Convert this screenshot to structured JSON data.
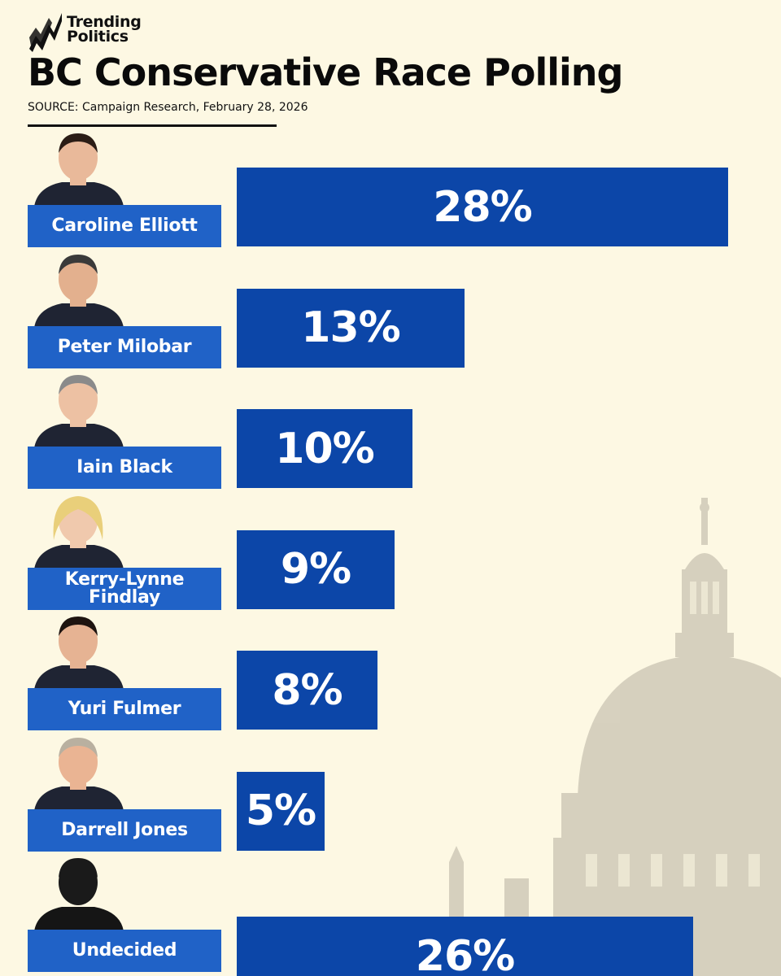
{
  "brand": {
    "line1": "Trending",
    "line2": "Politics"
  },
  "title": "BC Conservative Race Polling",
  "source": "SOURCE: Campaign Research, February 28, 2026",
  "colors": {
    "bar": "#0c46a8",
    "label": "#2062c7",
    "background": "#fdf8e3"
  },
  "chart_data": {
    "type": "bar",
    "orientation": "horizontal",
    "title": "BC Conservative Race Polling",
    "categories": [
      "Caroline Elliott",
      "Peter Milobar",
      "Iain Black",
      "Kerry-Lynne Findlay",
      "Yuri Fulmer",
      "Darrell Jones",
      "Undecided"
    ],
    "values": [
      28,
      13,
      10,
      9,
      8,
      5,
      26
    ],
    "value_labels": [
      "28%",
      "13%",
      "10%",
      "9%",
      "8%",
      "5%",
      "26%"
    ],
    "unit": "%",
    "xlim": [
      0,
      28
    ],
    "grid": false
  }
}
